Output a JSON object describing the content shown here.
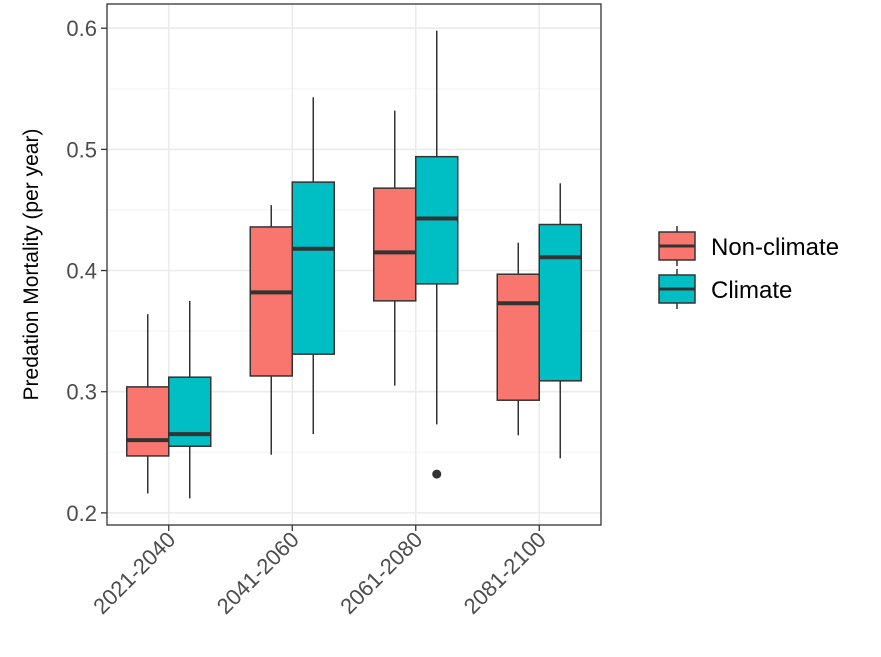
{
  "chart_data": {
    "type": "box",
    "title": "",
    "xlabel": "",
    "ylabel": "Predation Mortality (per year)",
    "ylim": [
      0.19,
      0.62
    ],
    "yticks": [
      0.2,
      0.3,
      0.4,
      0.5,
      0.6
    ],
    "ytick_labels": [
      "0.2",
      "0.3",
      "0.4",
      "0.5",
      "0.6"
    ],
    "categories": [
      "2021-2040",
      "2041-2060",
      "2061-2080",
      "2081-2100"
    ],
    "grid": true,
    "legend_position": "right",
    "series": [
      {
        "name": "Non-climate",
        "color": "#F8766D",
        "boxes": [
          {
            "min": 0.216,
            "q1": 0.247,
            "median": 0.26,
            "q3": 0.304,
            "max": 0.364,
            "outliers": []
          },
          {
            "min": 0.248,
            "q1": 0.313,
            "median": 0.382,
            "q3": 0.436,
            "max": 0.454,
            "outliers": []
          },
          {
            "min": 0.305,
            "q1": 0.375,
            "median": 0.415,
            "q3": 0.468,
            "max": 0.532,
            "outliers": []
          },
          {
            "min": 0.264,
            "q1": 0.293,
            "median": 0.373,
            "q3": 0.397,
            "max": 0.423,
            "outliers": []
          }
        ]
      },
      {
        "name": "Climate",
        "color": "#00BFC4",
        "boxes": [
          {
            "min": 0.212,
            "q1": 0.255,
            "median": 0.265,
            "q3": 0.312,
            "max": 0.375,
            "outliers": []
          },
          {
            "min": 0.265,
            "q1": 0.331,
            "median": 0.418,
            "q3": 0.473,
            "max": 0.543,
            "outliers": []
          },
          {
            "min": 0.273,
            "q1": 0.389,
            "median": 0.443,
            "q3": 0.494,
            "max": 0.598,
            "outliers": [
              0.232
            ]
          },
          {
            "min": 0.245,
            "q1": 0.309,
            "median": 0.411,
            "q3": 0.438,
            "max": 0.472,
            "outliers": []
          }
        ]
      }
    ]
  }
}
